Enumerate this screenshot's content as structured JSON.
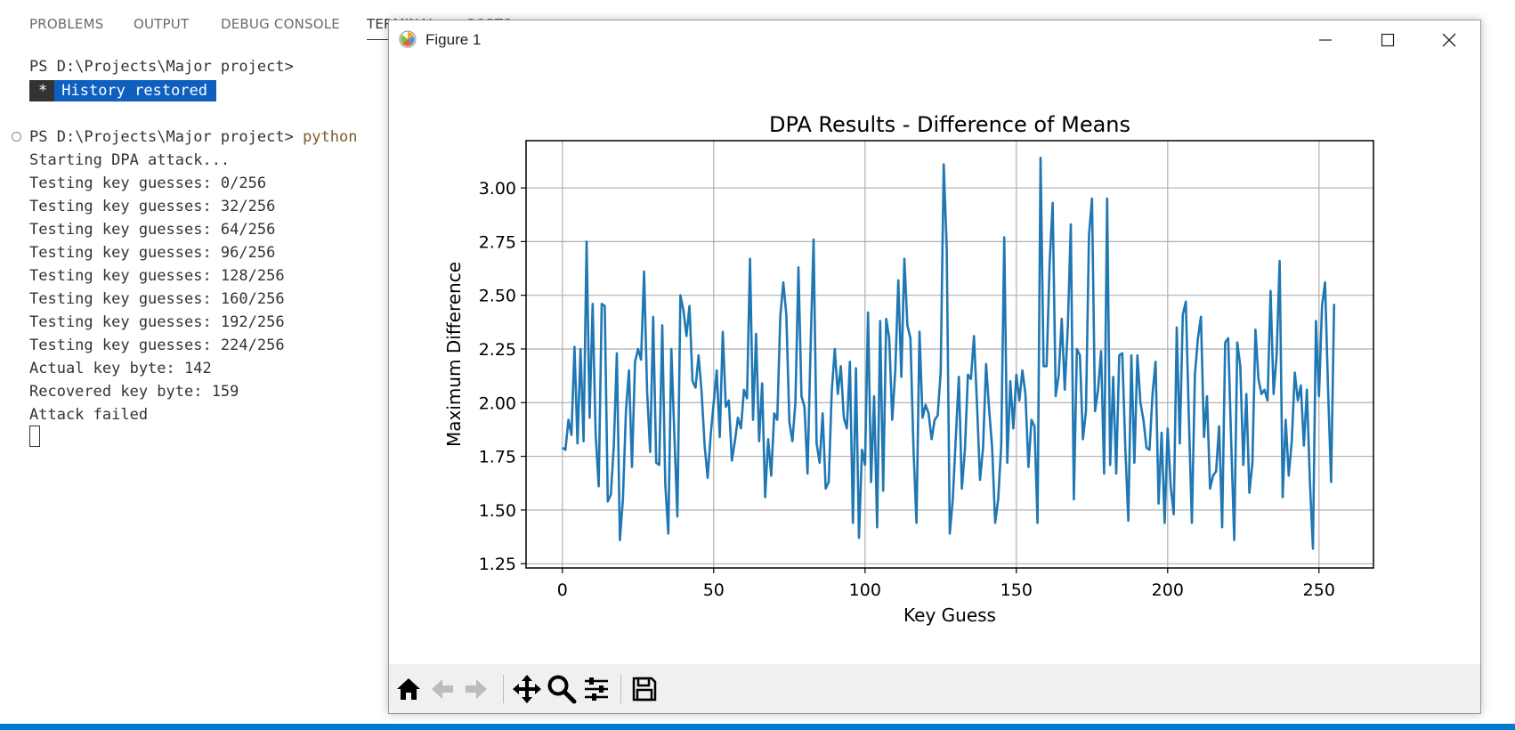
{
  "panel": {
    "tabs": [
      "PROBLEMS",
      "OUTPUT",
      "DEBUG CONSOLE",
      "TERMINAL",
      "PORTS"
    ]
  },
  "terminal": {
    "prompt1": "PS D:\\Projects\\Major project>",
    "history_star": "*",
    "history_text": "History restored",
    "prompt2": "PS D:\\Projects\\Major project>",
    "command": "python",
    "lines": [
      "Starting DPA attack...",
      "Testing key guesses: 0/256",
      "Testing key guesses: 32/256",
      "Testing key guesses: 64/256",
      "Testing key guesses: 96/256",
      "Testing key guesses: 128/256",
      "Testing key guesses: 160/256",
      "Testing key guesses: 192/256",
      "Testing key guesses: 224/256",
      "Actual key byte: 142",
      "Recovered key byte: 159",
      "Attack failed"
    ]
  },
  "figure": {
    "window_title": "Figure 1",
    "toolbar_icons": [
      "home-icon",
      "back-arrow-icon",
      "forward-arrow-icon",
      "pan-icon",
      "zoom-icon",
      "configure-subplots-icon",
      "save-icon"
    ]
  },
  "chart_data": {
    "type": "line",
    "title": "DPA Results - Difference of Means",
    "xlabel": "Key Guess",
    "ylabel": "Maximum Difference",
    "xlim": [
      -12,
      268
    ],
    "ylim": [
      1.23,
      3.22
    ],
    "xticks": [
      0,
      50,
      100,
      150,
      200,
      250
    ],
    "yticks": [
      1.25,
      1.5,
      1.75,
      2.0,
      2.25,
      2.5,
      2.75,
      3.0
    ],
    "ytick_labels": [
      "1.25",
      "1.50",
      "1.75",
      "2.00",
      "2.25",
      "2.50",
      "2.75",
      "3.00"
    ],
    "grid": true,
    "color": "#1f77b4",
    "series": [
      {
        "x_start": 0,
        "values": [
          1.79,
          1.78,
          1.92,
          1.85,
          2.26,
          1.81,
          2.25,
          1.82,
          2.75,
          1.93,
          2.46,
          1.85,
          1.61,
          2.46,
          2.45,
          1.54,
          1.57,
          1.8,
          2.23,
          1.36,
          1.55,
          1.96,
          2.15,
          1.7,
          2.19,
          2.25,
          2.2,
          2.61,
          2.05,
          1.77,
          2.4,
          1.72,
          1.71,
          2.36,
          1.62,
          1.39,
          2.25,
          1.85,
          1.47,
          2.5,
          2.43,
          2.31,
          2.45,
          2.1,
          2.07,
          2.22,
          2.05,
          1.8,
          1.65,
          1.85,
          2.0,
          2.15,
          1.84,
          2.33,
          1.98,
          2.01,
          1.73,
          1.82,
          1.93,
          1.88,
          2.06,
          2.02,
          2.67,
          1.92,
          2.32,
          1.82,
          2.09,
          1.56,
          1.83,
          1.66,
          1.95,
          1.92,
          2.4,
          2.56,
          2.41,
          1.91,
          1.82,
          2.0,
          2.63,
          2.03,
          1.98,
          1.67,
          2.25,
          2.76,
          1.81,
          1.72,
          1.95,
          1.6,
          1.63,
          2.05,
          2.25,
          2.04,
          2.17,
          1.93,
          1.88,
          2.19,
          1.44,
          2.16,
          1.37,
          1.78,
          1.71,
          2.42,
          1.63,
          2.03,
          1.42,
          2.38,
          1.59,
          2.39,
          2.3,
          1.92,
          2.15,
          2.57,
          2.12,
          2.67,
          2.36,
          2.3,
          1.79,
          1.44,
          2.33,
          1.93,
          1.99,
          1.95,
          1.83,
          1.92,
          1.94,
          2.14,
          3.11,
          2.72,
          1.39,
          1.55,
          1.84,
          2.12,
          1.6,
          1.78,
          2.13,
          2.11,
          2.31,
          1.99,
          1.64,
          1.79,
          2.18,
          1.97,
          1.79,
          1.44,
          1.55,
          1.8,
          2.77,
          1.72,
          2.1,
          1.88,
          2.13,
          2.01,
          2.15,
          2.04,
          1.7,
          1.92,
          1.89,
          1.44,
          3.14,
          2.17,
          2.17,
          2.65,
          2.93,
          2.03,
          2.13,
          2.39,
          2.06,
          2.35,
          2.83,
          1.55,
          2.25,
          2.22,
          1.83,
          1.96,
          2.78,
          2.95,
          1.96,
          2.06,
          2.24,
          1.67,
          2.95,
          1.71,
          2.12,
          1.67,
          2.22,
          2.23,
          1.79,
          1.45,
          2.22,
          1.72,
          2.22,
          2.0,
          1.92,
          1.79,
          1.78,
          2.04,
          2.19,
          1.53,
          1.86,
          1.44,
          1.88,
          1.61,
          1.48,
          2.35,
          1.81,
          2.41,
          2.47,
          1.93,
          1.44,
          2.13,
          2.3,
          2.4,
          1.84,
          2.03,
          1.6,
          1.66,
          1.68,
          1.89,
          1.42,
          2.28,
          2.3,
          1.81,
          1.36,
          2.28,
          2.17,
          1.71,
          2.04,
          1.58,
          1.72,
          2.34,
          2.11,
          2.04,
          2.06,
          2.01,
          2.52,
          2.04,
          2.22,
          2.66,
          1.56,
          1.92,
          1.66,
          1.82,
          2.14,
          2.01,
          2.08,
          1.8,
          2.06,
          1.63,
          1.32,
          2.38,
          2.03,
          2.45,
          2.56,
          2.06,
          1.63,
          2.46
        ]
      }
    ]
  }
}
